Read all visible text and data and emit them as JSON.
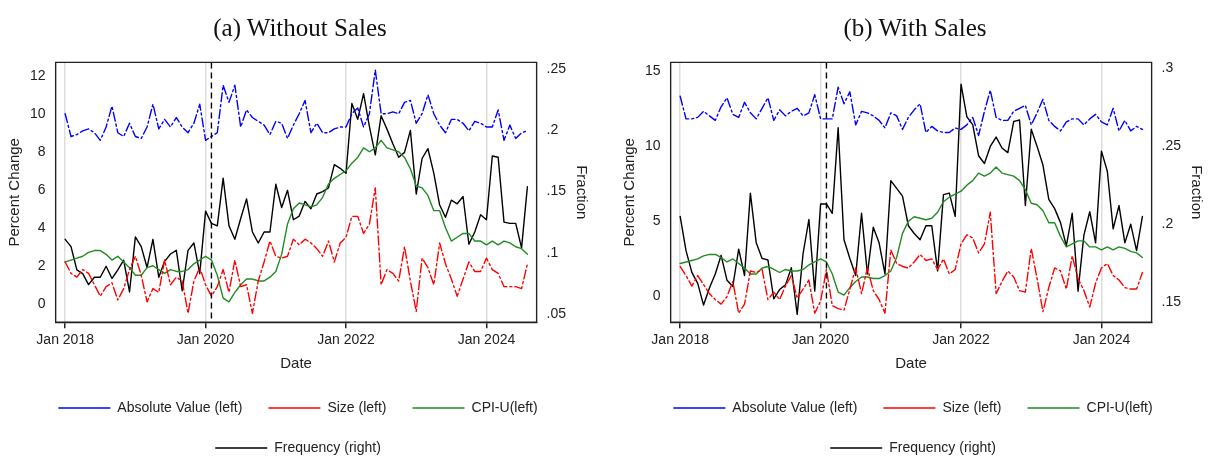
{
  "chart_data": [
    {
      "type": "line",
      "title": "(a) Without Sales",
      "xlabel": "Date",
      "ylabel": "Percent Change",
      "y2label": "Fraction",
      "x": [
        "2018-01",
        "2018-02",
        "2018-03",
        "2018-04",
        "2018-05",
        "2018-06",
        "2018-07",
        "2018-08",
        "2018-09",
        "2018-10",
        "2018-11",
        "2018-12",
        "2019-01",
        "2019-02",
        "2019-03",
        "2019-04",
        "2019-05",
        "2019-06",
        "2019-07",
        "2019-08",
        "2019-09",
        "2019-10",
        "2019-11",
        "2019-12",
        "2020-01",
        "2020-02",
        "2020-03",
        "2020-04",
        "2020-05",
        "2020-06",
        "2020-07",
        "2020-08",
        "2020-09",
        "2020-10",
        "2020-11",
        "2020-12",
        "2021-01",
        "2021-02",
        "2021-03",
        "2021-04",
        "2021-05",
        "2021-06",
        "2021-07",
        "2021-08",
        "2021-09",
        "2021-10",
        "2021-11",
        "2021-12",
        "2022-01",
        "2022-02",
        "2022-03",
        "2022-04",
        "2022-05",
        "2022-06",
        "2022-07",
        "2022-08",
        "2022-09",
        "2022-10",
        "2022-11",
        "2022-12",
        "2023-01",
        "2023-02",
        "2023-03",
        "2023-04",
        "2023-05",
        "2023-06",
        "2023-07",
        "2023-08",
        "2023-09",
        "2023-10",
        "2023-11",
        "2023-12",
        "2024-01",
        "2024-02",
        "2024-03",
        "2024-04",
        "2024-05",
        "2024-06",
        "2024-07",
        "2024-08"
      ],
      "series": [
        {
          "name": "Absolute Value (left)",
          "color": "#0000ff",
          "line_style": "dashed",
          "values": [
            10.0,
            8.8,
            8.9,
            9.1,
            9.2,
            9.0,
            8.6,
            9.3,
            10.4,
            9.0,
            8.8,
            9.5,
            8.8,
            8.7,
            9.3,
            10.5,
            9.2,
            9.7,
            9.3,
            9.8,
            9.3,
            9.0,
            9.5,
            10.5,
            8.6,
            8.8,
            9.0,
            11.5,
            10.6,
            11.5,
            9.3,
            10.2,
            9.8,
            9.6,
            9.4,
            8.9,
            9.6,
            9.5,
            8.7,
            9.4,
            10.0,
            10.7,
            9.0,
            9.5,
            9.0,
            9.0,
            9.2,
            9.3,
            9.3,
            10.0,
            10.3,
            9.3,
            10.0,
            12.3,
            10.0,
            10.0,
            10.1,
            10.0,
            10.6,
            10.7,
            9.5,
            10.0,
            11.0,
            10.0,
            9.4,
            9.0,
            9.7,
            9.7,
            9.5,
            9.1,
            9.6,
            9.5,
            9.3,
            9.3,
            10.2,
            8.6,
            9.4,
            8.7,
            9.0,
            9.1
          ]
        },
        {
          "name": "Size (left)",
          "color": "#ff0000",
          "line_style": "dashed",
          "values": [
            2.2,
            1.6,
            1.4,
            1.8,
            1.6,
            1.0,
            0.4,
            0.9,
            1.1,
            0.2,
            0.8,
            1.8,
            2.5,
            1.5,
            0.1,
            0.8,
            0.6,
            2.3,
            1.0,
            1.4,
            1.2,
            -0.5,
            1.2,
            1.9,
            1.0,
            0.4,
            0.9,
            1.8,
            0.6,
            2.3,
            0.9,
            1.0,
            -0.5,
            1.2,
            2.2,
            3.3,
            2.5,
            2.4,
            2.5,
            3.4,
            3.1,
            3.4,
            3.2,
            2.9,
            2.5,
            3.3,
            2.2,
            3.2,
            3.5,
            4.6,
            4.6,
            3.7,
            4.2,
            6.1,
            1.0,
            1.8,
            1.6,
            1.2,
            3.0,
            1.2,
            -0.4,
            2.4,
            1.9,
            1.0,
            3.2,
            2.1,
            1.3,
            0.4,
            1.3,
            2.2,
            1.7,
            1.7,
            2.4,
            1.8,
            1.6,
            0.9,
            0.9,
            0.9,
            0.8,
            2.1
          ]
        },
        {
          "name": "CPI-U(left)",
          "color": "#228b22",
          "line_style": "solid",
          "values": [
            2.2,
            2.3,
            2.4,
            2.5,
            2.7,
            2.8,
            2.8,
            2.6,
            2.3,
            2.5,
            2.2,
            1.9,
            1.5,
            1.5,
            1.9,
            2.0,
            1.8,
            1.6,
            1.8,
            1.7,
            1.7,
            1.8,
            2.1,
            2.3,
            2.5,
            2.3,
            1.5,
            0.3,
            0.1,
            0.6,
            1.0,
            1.3,
            1.3,
            1.2,
            1.2,
            1.4,
            1.7,
            2.6,
            4.2,
            5.0,
            5.3,
            5.2,
            5.1,
            5.2,
            5.6,
            6.3,
            6.6,
            6.8,
            7.0,
            7.4,
            7.7,
            8.2,
            8.0,
            8.2,
            8.6,
            8.2,
            8.1,
            8.0,
            7.7,
            7.1,
            6.2,
            6.1,
            5.7,
            4.9,
            4.9,
            4.0,
            3.3,
            3.5,
            3.7,
            3.7,
            3.3,
            3.3,
            3.1,
            3.3,
            3.1,
            3.3,
            3.2,
            3.0,
            2.9,
            2.6
          ]
        },
        {
          "name": "Frequency (right)",
          "color": "#000000",
          "line_style": "solid",
          "axis": "y2",
          "values": [
            0.111,
            0.105,
            0.086,
            0.083,
            0.074,
            0.08,
            0.08,
            0.089,
            0.079,
            0.086,
            0.094,
            0.068,
            0.113,
            0.105,
            0.088,
            0.111,
            0.08,
            0.093,
            0.099,
            0.102,
            0.069,
            0.102,
            0.108,
            0.083,
            0.134,
            0.124,
            0.122,
            0.161,
            0.122,
            0.111,
            0.128,
            0.144,
            0.117,
            0.108,
            0.117,
            0.117,
            0.156,
            0.137,
            0.151,
            0.127,
            0.13,
            0.142,
            0.136,
            0.148,
            0.15,
            0.153,
            0.172,
            0.169,
            0.165,
            0.222,
            0.209,
            0.23,
            0.203,
            0.18,
            0.212,
            0.201,
            0.189,
            0.178,
            0.182,
            0.2,
            0.148,
            0.177,
            0.185,
            0.165,
            0.139,
            0.129,
            0.143,
            0.14,
            0.146,
            0.107,
            0.117,
            0.131,
            0.127,
            0.179,
            0.178,
            0.125,
            0.124,
            0.124,
            0.104,
            0.154
          ]
        }
      ],
      "xlim": [
        "2017-11-12",
        "2024-09-18"
      ],
      "xticks": [
        {
          "value": "2018-01",
          "label": "Jan 2018"
        },
        {
          "value": "2020-01",
          "label": "Jan 2020"
        },
        {
          "value": "2022-01",
          "label": "Jan 2022"
        },
        {
          "value": "2024-01",
          "label": "Jan 2024"
        }
      ],
      "ylim": [
        -0.97,
        12.7
      ],
      "yticks": [
        0,
        2,
        4,
        6,
        8,
        10,
        12
      ],
      "y2lim": [
        0.0433,
        0.2555
      ],
      "y2ticks": [
        {
          "value": 0.05,
          "label": ".05"
        },
        {
          "value": 0.1,
          "label": ".1"
        },
        {
          "value": 0.15,
          "label": ".15"
        },
        {
          "value": 0.2,
          "label": ".2"
        },
        {
          "value": 0.25,
          "label": ".25"
        }
      ],
      "ref_lines": [
        {
          "axis": "x",
          "value": "2020-02",
          "color": "#000000",
          "line_style": "dashed"
        }
      ],
      "grid": "x",
      "legend": "bottom",
      "marker": "none"
    },
    {
      "type": "line",
      "title": "(b) With Sales",
      "xlabel": "Date",
      "ylabel": "Percent Change",
      "y2label": "Fraction",
      "x": [
        "2018-01",
        "2018-02",
        "2018-03",
        "2018-04",
        "2018-05",
        "2018-06",
        "2018-07",
        "2018-08",
        "2018-09",
        "2018-10",
        "2018-11",
        "2018-12",
        "2019-01",
        "2019-02",
        "2019-03",
        "2019-04",
        "2019-05",
        "2019-06",
        "2019-07",
        "2019-08",
        "2019-09",
        "2019-10",
        "2019-11",
        "2019-12",
        "2020-01",
        "2020-02",
        "2020-03",
        "2020-04",
        "2020-05",
        "2020-06",
        "2020-07",
        "2020-08",
        "2020-09",
        "2020-10",
        "2020-11",
        "2020-12",
        "2021-01",
        "2021-02",
        "2021-03",
        "2021-04",
        "2021-05",
        "2021-06",
        "2021-07",
        "2021-08",
        "2021-09",
        "2021-10",
        "2021-11",
        "2021-12",
        "2022-01",
        "2022-02",
        "2022-03",
        "2022-04",
        "2022-05",
        "2022-06",
        "2022-07",
        "2022-08",
        "2022-09",
        "2022-10",
        "2022-11",
        "2022-12",
        "2023-01",
        "2023-02",
        "2023-03",
        "2023-04",
        "2023-05",
        "2023-06",
        "2023-07",
        "2023-08",
        "2023-09",
        "2023-10",
        "2023-11",
        "2023-12",
        "2024-01",
        "2024-02",
        "2024-03",
        "2024-04",
        "2024-05",
        "2024-06",
        "2024-07",
        "2024-08"
      ],
      "series": [
        {
          "name": "Absolute Value (left)",
          "color": "#0000ff",
          "line_style": "dashed",
          "values": [
            13.3,
            11.8,
            11.8,
            11.9,
            12.3,
            12.0,
            11.7,
            12.6,
            13.2,
            12.1,
            11.9,
            12.9,
            12.2,
            11.8,
            12.5,
            13.2,
            11.7,
            12.4,
            12.0,
            12.3,
            12.5,
            12.0,
            12.2,
            13.4,
            11.8,
            11.8,
            11.8,
            13.9,
            12.8,
            13.6,
            11.4,
            12.3,
            12.2,
            12.0,
            11.7,
            11.2,
            12.2,
            12.0,
            11.1,
            11.9,
            12.4,
            12.8,
            10.9,
            11.3,
            11.0,
            10.9,
            10.9,
            11.2,
            11.1,
            11.4,
            11.9,
            10.7,
            12.3,
            13.7,
            11.9,
            11.7,
            11.7,
            12.3,
            12.5,
            12.7,
            11.4,
            12.2,
            13.1,
            11.7,
            11.3,
            11.0,
            11.6,
            11.8,
            11.8,
            11.4,
            11.8,
            12.1,
            11.6,
            11.4,
            12.5,
            11.0,
            11.7,
            11.0,
            11.3,
            11.1
          ]
        },
        {
          "name": "Size (left)",
          "color": "#ff0000",
          "line_style": "dashed",
          "values": [
            2.0,
            1.4,
            0.7,
            1.4,
            0.8,
            0.2,
            -0.2,
            -0.5,
            0.0,
            1.0,
            -1.1,
            -0.5,
            1.7,
            1.6,
            1.8,
            -0.2,
            0.3,
            -0.2,
            0.7,
            1.4,
            -0.1,
            0.5,
            1.1,
            -1.1,
            -0.3,
            1.8,
            -0.6,
            -0.8,
            -0.9,
            0.5,
            1.9,
            0.2,
            1.9,
            0.4,
            -0.2,
            -1.1,
            3.1,
            2.2,
            2.0,
            1.9,
            2.3,
            2.8,
            2.4,
            2.5,
            1.8,
            2.5,
            1.5,
            1.8,
            3.5,
            4.1,
            3.9,
            2.9,
            3.5,
            5.6,
            0.2,
            1.0,
            1.7,
            1.3,
            0.4,
            0.3,
            3.2,
            1.2,
            -1.0,
            0.6,
            1.9,
            1.7,
            0.5,
            2.7,
            1.2,
            0.4,
            -0.7,
            0.9,
            1.9,
            2.2,
            1.4,
            1.1,
            0.6,
            0.5,
            0.5,
            1.6
          ]
        },
        {
          "name": "CPI-U(left)",
          "color": "#228b22",
          "line_style": "solid",
          "values": [
            2.2,
            2.3,
            2.4,
            2.5,
            2.7,
            2.8,
            2.8,
            2.6,
            2.3,
            2.5,
            2.2,
            1.9,
            1.5,
            1.5,
            1.9,
            2.0,
            1.8,
            1.6,
            1.8,
            1.7,
            1.7,
            1.8,
            2.1,
            2.3,
            2.5,
            2.3,
            1.5,
            0.3,
            0.1,
            0.6,
            1.0,
            1.3,
            1.3,
            1.2,
            1.2,
            1.4,
            1.7,
            2.6,
            4.2,
            5.0,
            5.3,
            5.2,
            5.1,
            5.2,
            5.6,
            6.3,
            6.6,
            6.8,
            7.0,
            7.4,
            7.7,
            8.2,
            8.0,
            8.2,
            8.6,
            8.2,
            8.1,
            8.0,
            7.7,
            7.1,
            6.2,
            6.1,
            5.7,
            4.9,
            4.9,
            4.0,
            3.3,
            3.5,
            3.7,
            3.7,
            3.3,
            3.3,
            3.1,
            3.3,
            3.1,
            3.3,
            3.2,
            3.0,
            2.9,
            2.6
          ]
        },
        {
          "name": "Frequency (right)",
          "color": "#000000",
          "line_style": "solid",
          "axis": "y2",
          "values": [
            0.205,
            0.183,
            0.169,
            0.162,
            0.148,
            0.159,
            0.168,
            0.18,
            0.164,
            0.16,
            0.184,
            0.167,
            0.22,
            0.188,
            0.178,
            0.177,
            0.152,
            0.158,
            0.161,
            0.172,
            0.142,
            0.181,
            0.203,
            0.157,
            0.213,
            0.213,
            0.207,
            0.262,
            0.19,
            0.178,
            0.167,
            0.207,
            0.168,
            0.198,
            0.188,
            0.168,
            0.228,
            0.223,
            0.218,
            0.199,
            0.194,
            0.19,
            0.199,
            0.199,
            0.17,
            0.219,
            0.22,
            0.205,
            0.29,
            0.269,
            0.264,
            0.244,
            0.239,
            0.25,
            0.256,
            0.249,
            0.246,
            0.266,
            0.267,
            0.212,
            0.261,
            0.25,
            0.238,
            0.216,
            0.21,
            0.201,
            0.186,
            0.207,
            0.157,
            0.193,
            0.208,
            0.188,
            0.247,
            0.234,
            0.197,
            0.212,
            0.188,
            0.2,
            0.183,
            0.205
          ]
        }
      ],
      "xlim": [
        "2017-11-12",
        "2024-09-18"
      ],
      "xticks": [
        {
          "value": "2018-01",
          "label": "Jan 2018"
        },
        {
          "value": "2020-01",
          "label": "Jan 2020"
        },
        {
          "value": "2022-01",
          "label": "Jan 2022"
        },
        {
          "value": "2024-01",
          "label": "Jan 2024"
        }
      ],
      "ylim": [
        -1.7,
        15.55
      ],
      "yticks": [
        0,
        5,
        10,
        15
      ],
      "y2lim": [
        0.137,
        0.304
      ],
      "y2ticks": [
        {
          "value": 0.15,
          "label": ".15"
        },
        {
          "value": 0.2,
          "label": ".2"
        },
        {
          "value": 0.25,
          "label": ".25"
        },
        {
          "value": 0.3,
          "label": ".3"
        }
      ],
      "ref_lines": [
        {
          "axis": "x",
          "value": "2020-02",
          "color": "#000000",
          "line_style": "dashed"
        }
      ],
      "grid": "x",
      "legend": "bottom",
      "marker": "none"
    }
  ]
}
